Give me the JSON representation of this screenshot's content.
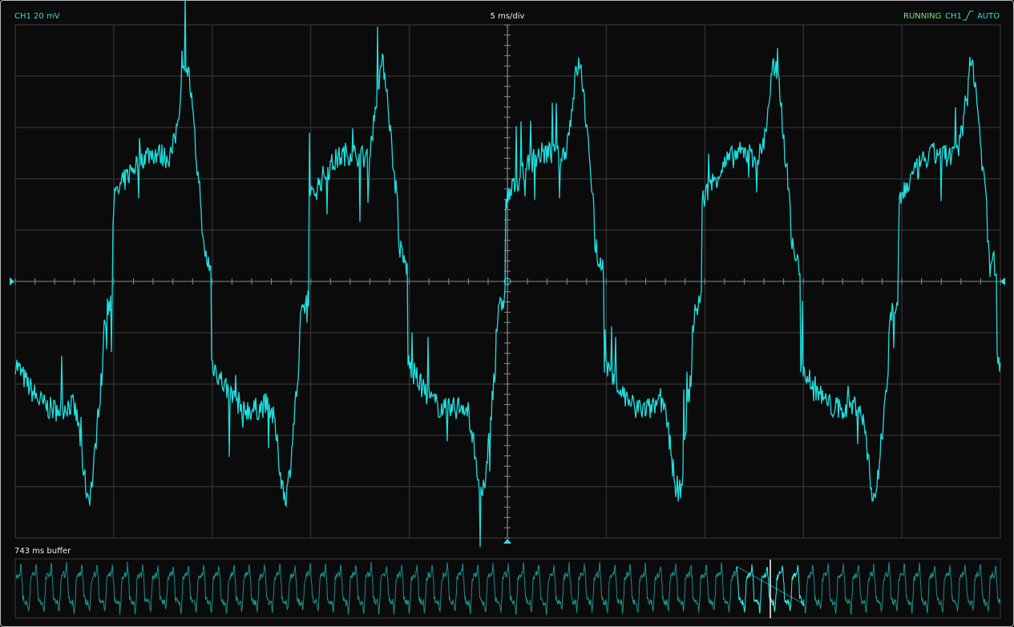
{
  "header": {
    "channel_scale": "CH1 20 mV",
    "timebase": "5 ms/div",
    "status": "RUNNING",
    "trigger_source": "CH1",
    "trigger_mode": "AUTO"
  },
  "buffer": {
    "label": "743 ms buffer"
  }
}
